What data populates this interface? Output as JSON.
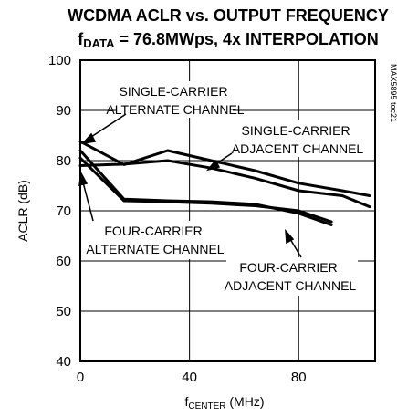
{
  "chart_data": {
    "type": "line",
    "title_line1": "WCDMA ACLR vs. OUTPUT FREQUENCY",
    "title_line2": {
      "prefix": "f",
      "subscript": "DATA",
      "rest": " = 76.8MWps, 4x INTERPOLATION"
    },
    "xlabel": {
      "prefix": "f",
      "subscript": "CENTER",
      "rest": " (MHz)"
    },
    "ylabel": "ACLR (dB)",
    "xlim": [
      0,
      108
    ],
    "ylim": [
      40,
      100
    ],
    "x_ticks": [
      0,
      40,
      80
    ],
    "y_ticks": [
      40,
      50,
      60,
      70,
      80,
      90,
      100
    ],
    "x_grid": [
      0,
      40,
      80
    ],
    "y_grid": [
      40,
      50,
      60,
      70,
      80,
      90,
      100
    ],
    "grid": true,
    "figure_id": "MAX5895 toc21",
    "series": [
      {
        "label_lines": [
          "SINGLE-CARRIER",
          "ALTERNATE CHANNEL"
        ],
        "x": [
          0,
          16,
          32,
          48,
          64,
          80,
          96,
          106
        ],
        "y": [
          83.8,
          79.2,
          82,
          80,
          78,
          75.5,
          74,
          73
        ]
      },
      {
        "label_lines": [
          "SINGLE-CARRIER",
          "ADJACENT CHANNEL"
        ],
        "x": [
          0,
          16,
          32,
          48,
          64,
          80,
          96,
          106
        ],
        "y": [
          79,
          79.3,
          80,
          78.5,
          76.5,
          74,
          73,
          70.8
        ]
      },
      {
        "label_lines": [
          "FOUR-CARRIER",
          "ALTERNATE CHANNEL"
        ],
        "x": [
          0,
          16,
          32,
          48,
          64,
          80,
          92
        ],
        "y": [
          82,
          72.3,
          72,
          71.8,
          71.3,
          69.5,
          67.2
        ]
      },
      {
        "label_lines": [
          "FOUR-CARRIER",
          "ADJACENT CHANNEL"
        ],
        "x": [
          0,
          16,
          32,
          48,
          64,
          80,
          92
        ],
        "y": [
          80.5,
          72,
          71.8,
          71.5,
          71,
          70,
          67.8
        ]
      }
    ]
  }
}
